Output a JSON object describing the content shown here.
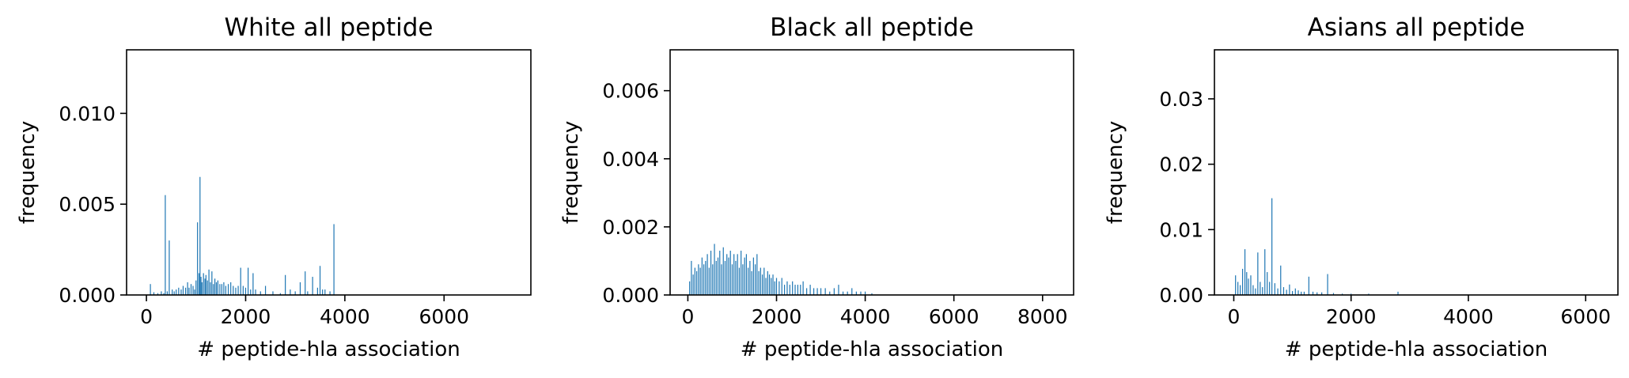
{
  "chart_data": [
    {
      "type": "bar",
      "title": "White  all peptide",
      "xlabel": "# peptide-hla association",
      "ylabel": "frequency",
      "xlim": [
        -400,
        7750
      ],
      "ylim": [
        0,
        0.0135
      ],
      "xticks": [
        0,
        2000,
        4000,
        6000
      ],
      "xtick_labels": [
        "0",
        "2000",
        "4000",
        "6000"
      ],
      "yticks": [
        0,
        0.005,
        0.01
      ],
      "ytick_labels": [
        "0.000",
        "0.005",
        "0.010"
      ],
      "color": "#1f77b4",
      "grid": false,
      "x": [
        80,
        150,
        230,
        300,
        350,
        380,
        420,
        460,
        520,
        560,
        600,
        650,
        700,
        740,
        790,
        830,
        860,
        900,
        940,
        970,
        1000,
        1030,
        1060,
        1080,
        1100,
        1120,
        1150,
        1180,
        1200,
        1230,
        1260,
        1290,
        1320,
        1350,
        1380,
        1410,
        1440,
        1480,
        1520,
        1560,
        1600,
        1650,
        1700,
        1750,
        1800,
        1850,
        1900,
        1950,
        2000,
        2050,
        2100,
        2150,
        2200,
        2300,
        2400,
        2550,
        2700,
        2800,
        2900,
        3000,
        3100,
        3200,
        3250,
        3350,
        3450,
        3500,
        3550,
        3600,
        3700,
        3780
      ],
      "values": [
        0.0006,
        0.00015,
        0.0001,
        0.0002,
        0.0001,
        0.0055,
        0.0002,
        0.003,
        0.0003,
        0.0002,
        0.0003,
        0.0004,
        0.0003,
        0.0005,
        0.0004,
        0.0007,
        0.0004,
        0.0006,
        0.0005,
        0.0003,
        0.0008,
        0.004,
        0.0012,
        0.0065,
        0.001,
        0.0007,
        0.0012,
        0.0009,
        0.0011,
        0.0008,
        0.0014,
        0.0007,
        0.0013,
        0.0006,
        0.0009,
        0.0007,
        0.0008,
        0.0006,
        0.0006,
        0.0007,
        0.0005,
        0.0006,
        0.0007,
        0.0005,
        0.0004,
        0.0005,
        0.0015,
        0.0005,
        0.0004,
        0.0015,
        0.0003,
        0.0012,
        0.0003,
        0.0002,
        0.0005,
        0.0002,
        0.0001,
        0.0011,
        0.0003,
        0.0002,
        0.0007,
        0.0013,
        0.0002,
        0.001,
        0.0004,
        0.0016,
        0.0003,
        0.0003,
        0.0002,
        0.0039
      ]
    },
    {
      "type": "bar",
      "title": "Black  all peptide",
      "xlabel": "# peptide-hla association",
      "ylabel": "frequency",
      "xlim": [
        -400,
        8700
      ],
      "ylim": [
        0,
        0.0072
      ],
      "xticks": [
        0,
        2000,
        4000,
        6000,
        8000
      ],
      "xtick_labels": [
        "0",
        "2000",
        "4000",
        "6000",
        "8000"
      ],
      "yticks": [
        0,
        0.002,
        0.004,
        0.006
      ],
      "ytick_labels": [
        "0.000",
        "0.002",
        "0.004",
        "0.006"
      ],
      "color": "#1f77b4",
      "grid": false,
      "x": [
        40,
        80,
        120,
        160,
        200,
        240,
        280,
        320,
        360,
        400,
        440,
        480,
        520,
        560,
        600,
        640,
        680,
        720,
        760,
        800,
        840,
        880,
        920,
        960,
        1000,
        1040,
        1080,
        1120,
        1160,
        1200,
        1240,
        1280,
        1320,
        1360,
        1400,
        1440,
        1480,
        1520,
        1560,
        1600,
        1640,
        1680,
        1720,
        1760,
        1800,
        1840,
        1880,
        1920,
        1960,
        2000,
        2060,
        2120,
        2180,
        2240,
        2300,
        2360,
        2420,
        2480,
        2540,
        2600,
        2680,
        2760,
        2840,
        2920,
        3000,
        3100,
        3200,
        3300,
        3400,
        3500,
        3600,
        3700,
        3800,
        3900,
        4000,
        4150
      ],
      "values": [
        0.0004,
        0.001,
        0.0006,
        0.0008,
        0.0007,
        0.0009,
        0.0008,
        0.0011,
        0.0009,
        0.001,
        0.0012,
        0.0008,
        0.0013,
        0.0009,
        0.0015,
        0.001,
        0.0011,
        0.0013,
        0.0009,
        0.0014,
        0.001,
        0.0012,
        0.0011,
        0.0013,
        0.0009,
        0.0012,
        0.001,
        0.0012,
        0.0008,
        0.0013,
        0.0009,
        0.0011,
        0.0012,
        0.0008,
        0.001,
        0.0007,
        0.0011,
        0.0009,
        0.0012,
        0.0007,
        0.0008,
        0.0006,
        0.0008,
        0.0005,
        0.0007,
        0.0006,
        0.0005,
        0.0006,
        0.0004,
        0.0005,
        0.0004,
        0.0005,
        0.0003,
        0.0004,
        0.0003,
        0.0004,
        0.0003,
        0.0003,
        0.0003,
        0.0004,
        0.0002,
        0.0003,
        0.0002,
        0.0002,
        0.0002,
        0.0002,
        0.0001,
        0.0002,
        0.0003,
        0.0001,
        0.0001,
        0.0002,
        0.0001,
        0.0001,
        0.0001,
        5e-05
      ]
    },
    {
      "type": "bar",
      "title": "Asians  all peptide",
      "xlabel": "# peptide-hla association",
      "ylabel": "frequency",
      "xlim": [
        -330,
        6550
      ],
      "ylim": [
        0,
        0.0375
      ],
      "xticks": [
        0,
        2000,
        4000,
        6000
      ],
      "xtick_labels": [
        "0",
        "2000",
        "4000",
        "6000"
      ],
      "yticks": [
        0,
        0.01,
        0.02,
        0.03
      ],
      "ytick_labels": [
        "0.00",
        "0.01",
        "0.02",
        "0.03"
      ],
      "color": "#1f77b4",
      "grid": false,
      "x": [
        30,
        70,
        110,
        150,
        190,
        220,
        250,
        290,
        330,
        370,
        410,
        450,
        490,
        530,
        570,
        610,
        650,
        700,
        750,
        800,
        850,
        900,
        950,
        1000,
        1050,
        1100,
        1150,
        1200,
        1280,
        1350,
        1420,
        1500,
        1600,
        1700,
        1850,
        2000,
        2300,
        2800
      ],
      "values": [
        0.003,
        0.002,
        0.0015,
        0.004,
        0.007,
        0.0035,
        0.0025,
        0.003,
        0.0015,
        0.001,
        0.0065,
        0.002,
        0.0012,
        0.007,
        0.0035,
        0.002,
        0.0148,
        0.0018,
        0.001,
        0.0045,
        0.0012,
        0.0008,
        0.0016,
        0.0006,
        0.001,
        0.0007,
        0.0005,
        0.0005,
        0.0028,
        0.0005,
        0.0004,
        0.0004,
        0.0032,
        0.0003,
        0.0002,
        0.0002,
        0.0002,
        0.0005
      ]
    }
  ]
}
